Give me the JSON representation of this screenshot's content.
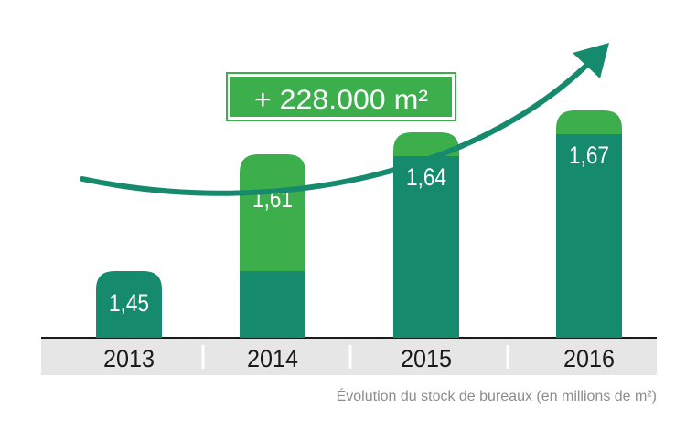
{
  "caption": "Évolution du stock de bureaux (en millions de m²)",
  "badge": {
    "text": "+ 228.000 m²"
  },
  "chart_data": {
    "type": "bar",
    "categories": [
      "2013",
      "2014",
      "2015",
      "2016"
    ],
    "values": [
      1.45,
      1.61,
      1.64,
      1.67
    ],
    "labels": [
      "1,45",
      "1,61",
      "1,64",
      "1,67"
    ],
    "base_2013": 1.45,
    "increase_total": "+ 228.000 m²",
    "title": "",
    "xlabel": "",
    "ylabel": "",
    "colors": {
      "base": "#168a6d",
      "increase": "#3cae4b",
      "axis_band": "#e6e6e6",
      "arrow": "#168a6d"
    }
  }
}
